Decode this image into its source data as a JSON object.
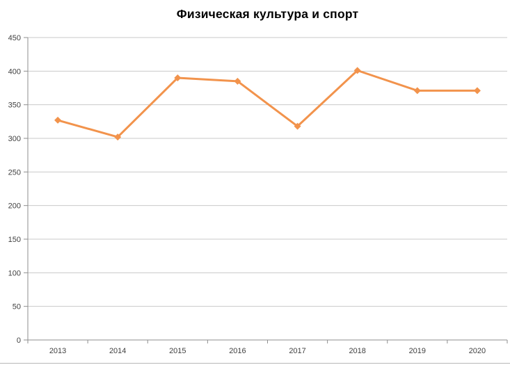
{
  "chart_data": {
    "type": "line",
    "title": "Физическая культура и спорт",
    "categories": [
      "2013",
      "2014",
      "2015",
      "2016",
      "2017",
      "2018",
      "2019",
      "2020"
    ],
    "values": [
      327,
      302,
      390,
      385,
      318,
      401,
      371,
      371
    ],
    "xlabel": "",
    "ylabel": "",
    "ylim": [
      0,
      450
    ],
    "ytick_step": 50,
    "yticks": [
      0,
      50,
      100,
      150,
      200,
      250,
      300,
      350,
      400,
      450
    ],
    "grid": "horizontal-only",
    "legend": "none",
    "series_color": "#f2934c",
    "marker_shape": "diamond",
    "grid_color": "#c9c9c9",
    "axis_color": "#8e8e8e",
    "tick_label_color": "#404040",
    "title_color": "#000000",
    "background_color": "#ffffff"
  }
}
